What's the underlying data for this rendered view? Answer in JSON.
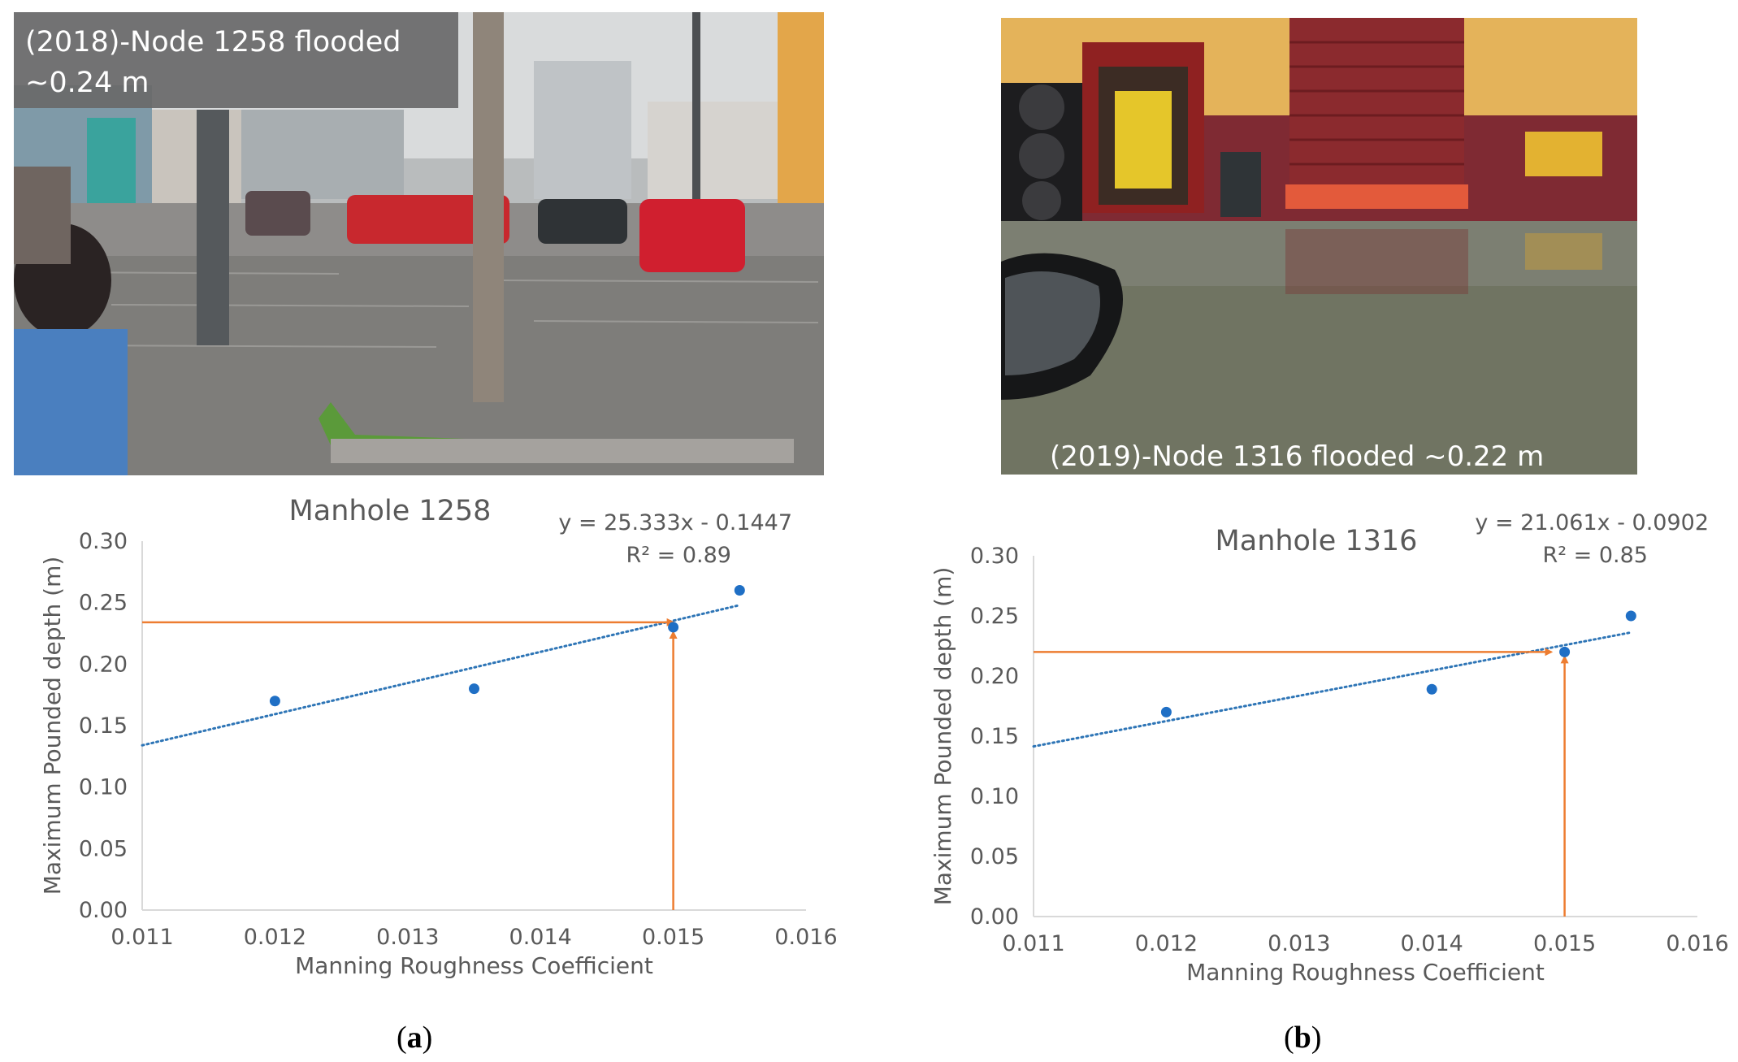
{
  "panel_a": {
    "photo_caption": "(2018)-Node 1258 flooded ~0.24 m",
    "label_open": "(",
    "label_letter": "a",
    "label_close": ")"
  },
  "panel_b": {
    "photo_caption": "(2019)-Node 1316 flooded ~0.22 m",
    "label_open": "(",
    "label_letter": "b",
    "label_close": ")"
  },
  "colors": {
    "points": "#1f6fc5",
    "trendline": "#2e75b6",
    "arrows": "#ed7d31",
    "axis": "#d9d9d9",
    "text": "#595959"
  },
  "chart_data": [
    {
      "type": "scatter",
      "title": "Manhole 1258",
      "xlabel": "Manning Roughness Coefficient",
      "ylabel": "Maximum Pounded depth (m)",
      "xlim": [
        0.011,
        0.016
      ],
      "ylim": [
        0.0,
        0.3
      ],
      "x_ticks": [
        "0.011",
        "0.012",
        "0.013",
        "0.014",
        "0.015",
        "0.016"
      ],
      "y_ticks": [
        "0.00",
        "0.05",
        "0.10",
        "0.15",
        "0.20",
        "0.25",
        "0.30"
      ],
      "points": [
        {
          "x": 0.012,
          "y": 0.17
        },
        {
          "x": 0.0135,
          "y": 0.18
        },
        {
          "x": 0.015,
          "y": 0.23
        },
        {
          "x": 0.0155,
          "y": 0.26
        }
      ],
      "trendline": {
        "slope": 25.333,
        "intercept": -0.1447,
        "style": "dotted",
        "x_range": [
          0.011,
          0.0155
        ]
      },
      "equation": "y = 25.333x - 0.1447",
      "r_squared": "R² = 0.89",
      "arrows": [
        {
          "from": [
            0.011,
            0.234
          ],
          "to": [
            0.015,
            0.234
          ]
        },
        {
          "from": [
            0.015,
            0.0
          ],
          "to": [
            0.015,
            0.226
          ]
        }
      ],
      "grid": false
    },
    {
      "type": "scatter",
      "title": "Manhole 1316",
      "xlabel": "Manning Roughness Coefficient",
      "ylabel": "Maximum Pounded depth (m)",
      "xlim": [
        0.011,
        0.016
      ],
      "ylim": [
        0.0,
        0.3
      ],
      "x_ticks": [
        "0.011",
        "0.012",
        "0.013",
        "0.014",
        "0.015",
        "0.016"
      ],
      "y_ticks": [
        "0.00",
        "0.05",
        "0.10",
        "0.15",
        "0.20",
        "0.25",
        "0.30"
      ],
      "points": [
        {
          "x": 0.012,
          "y": 0.17
        },
        {
          "x": 0.014,
          "y": 0.189
        },
        {
          "x": 0.015,
          "y": 0.22
        },
        {
          "x": 0.0155,
          "y": 0.25
        }
      ],
      "trendline": {
        "slope": 21.061,
        "intercept": -0.0902,
        "style": "dotted",
        "x_range": [
          0.011,
          0.0155
        ]
      },
      "equation": "y = 21.061x - 0.0902",
      "r_squared": "R² = 0.85",
      "arrows": [
        {
          "from": [
            0.011,
            0.22
          ],
          "to": [
            0.0149,
            0.22
          ]
        },
        {
          "from": [
            0.015,
            0.0
          ],
          "to": [
            0.015,
            0.216
          ]
        }
      ],
      "grid": false
    }
  ]
}
